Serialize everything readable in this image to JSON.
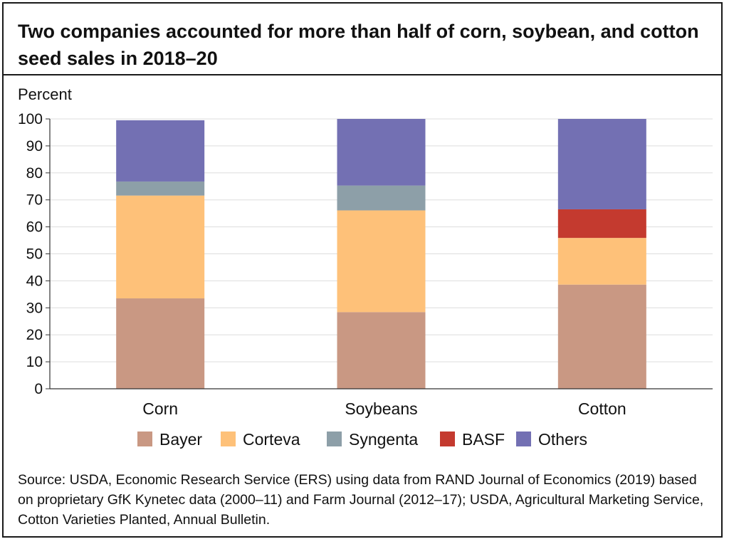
{
  "title": "Two companies accounted for more than half of corn, soybean, and cotton seed sales in 2018–20",
  "source": "Source: USDA, Economic Research Service (ERS) using data from RAND Journal of Economics (2019) based on proprietary GfK Kynetec data (2000–11) and Farm Journal (2012–17); USDA, Agricultural Marketing Service, Cotton Varieties Planted, Annual Bulletin.",
  "colors": {
    "Bayer": "#c99883",
    "Corteva": "#fec179",
    "Syngenta": "#8d9fa8",
    "BASF": "#c43a2f",
    "Others": "#7370b3",
    "grid": "#dddddd",
    "axis": "#333333"
  },
  "chart_data": {
    "type": "bar",
    "stacked": true,
    "title": "Two companies accounted for more than half of corn, soybean, and cotton seed sales in 2018–20",
    "ylabel": "Percent",
    "xlabel": "",
    "ylim": [
      0,
      100
    ],
    "yticks": [
      0,
      10,
      20,
      30,
      40,
      50,
      60,
      70,
      80,
      90,
      100
    ],
    "categories": [
      "Corn",
      "Soybeans",
      "Cotton"
    ],
    "series": [
      {
        "name": "Bayer",
        "values": [
          33.5,
          28.4,
          38.6
        ]
      },
      {
        "name": "Corteva",
        "values": [
          38.1,
          37.7,
          17.3
        ]
      },
      {
        "name": "Syngenta",
        "values": [
          5.2,
          9.2,
          0
        ]
      },
      {
        "name": "BASF",
        "values": [
          0,
          0,
          10.6
        ]
      },
      {
        "name": "Others",
        "values": [
          22.7,
          24.7,
          33.5
        ]
      }
    ],
    "legend": [
      "Bayer",
      "Corteva",
      "Syngenta",
      "BASF",
      "Others"
    ],
    "legend_position": "bottom",
    "grid": true
  }
}
